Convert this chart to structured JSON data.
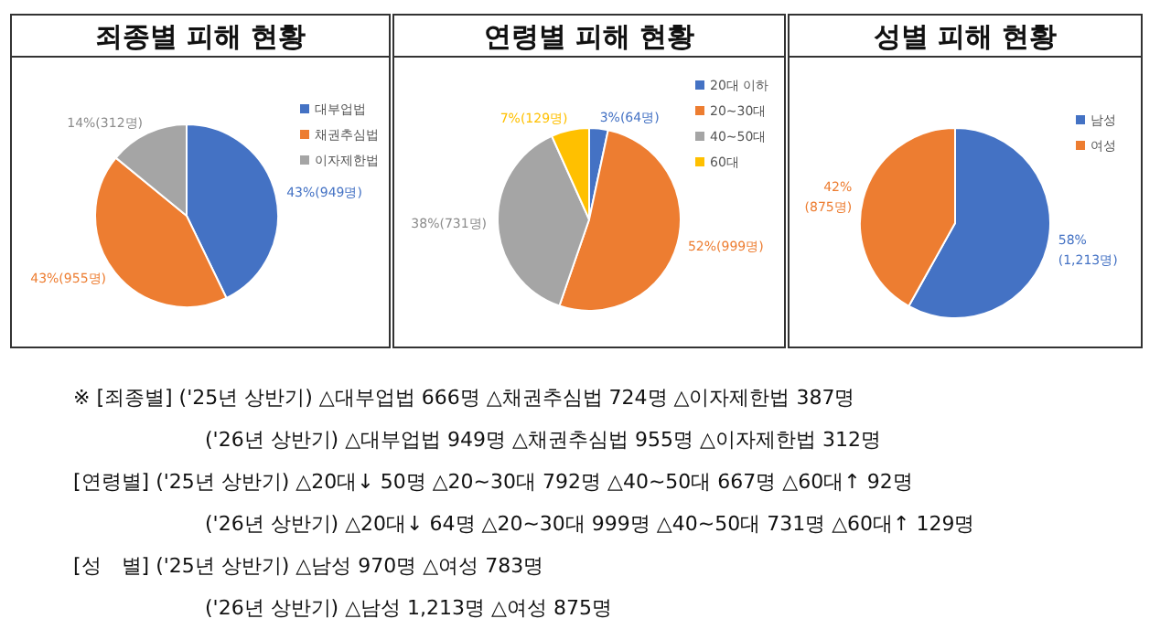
{
  "chart_data": [
    {
      "type": "pie",
      "title": "죄종별 피해 현황",
      "categories": [
        "대부업법",
        "채권추심법",
        "이자제한법"
      ],
      "values": [
        949,
        955,
        312
      ],
      "colors": [
        "#4472c4",
        "#ed7d31",
        "#a5a5a5"
      ],
      "value_labels": [
        "43%(949명)",
        "43%(955명)",
        "14%(312명)"
      ],
      "legend": "right"
    },
    {
      "type": "pie",
      "title": "연령별 피해 현황",
      "categories": [
        "20대 이하",
        "20~30대",
        "40~50대",
        "60대"
      ],
      "values": [
        64,
        999,
        731,
        129
      ],
      "colors": [
        "#4472c4",
        "#ed7d31",
        "#a5a5a5",
        "#ffc000"
      ],
      "value_labels": [
        "3%(64명)",
        "52%(999명)",
        "38%(731명)",
        "7%(129명)"
      ],
      "legend": "top right"
    },
    {
      "type": "pie",
      "title": "성별 피해 현황",
      "categories": [
        "남성",
        "여성"
      ],
      "values": [
        1213,
        875
      ],
      "colors": [
        "#4472c4",
        "#ed7d31"
      ],
      "value_labels": [
        "58%\n(1,213명)",
        "42%\n(875명)"
      ],
      "legend": "top right",
      "annotations": [
        "※ [죄종별] ('25년 상반기) △대부업법 666명 △채권추심법 724명 △이자제한법 387명",
        "('26년 상반기) △대부업법 949명 △채권추심법 955명 △이자제한법 312명",
        "[연령별] ('25년 상반기) △20대↓ 50명 △20~30대 792명 △40~50대 667명 △60대↑ 92명",
        "('26년 상반기) △20대↓ 64명 △20~30대 999명 △40~50대 731명 △60대↑ 129명",
        "[성　별] ('25년 상반기) △남성 970명 △여성 783명",
        "('26년 상반기) △남성 1,213명 △여성 875명"
      ]
    }
  ]
}
